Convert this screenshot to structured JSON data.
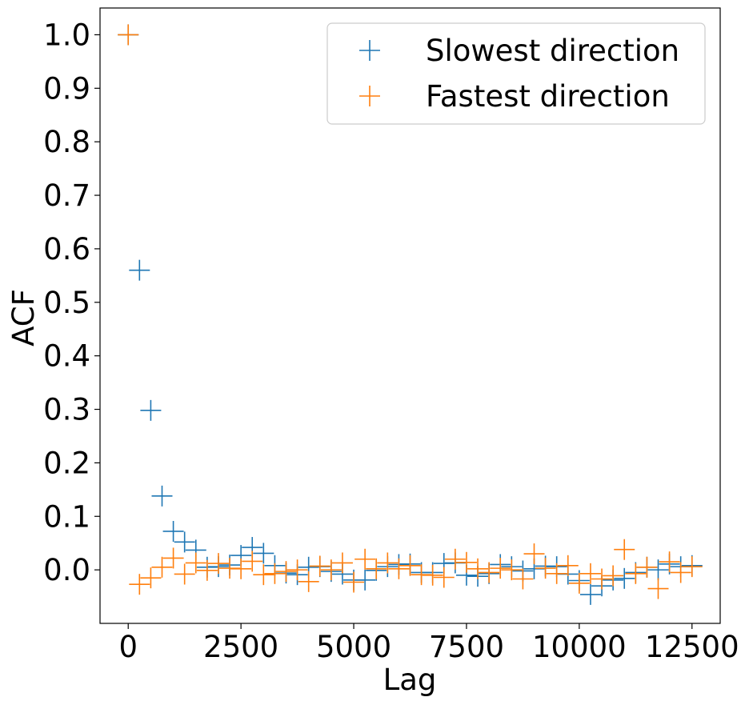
{
  "chart_data": {
    "type": "scatter",
    "marker": "plus",
    "xlabel": "Lag",
    "ylabel": "ACF",
    "xlim": [
      -625,
      13125
    ],
    "ylim": [
      -0.1,
      1.05
    ],
    "x_ticks": [
      0,
      2500,
      5000,
      7500,
      10000,
      12500
    ],
    "y_ticks": [
      0.0,
      0.1,
      0.2,
      0.3,
      0.4,
      0.5,
      0.6,
      0.7,
      0.8,
      0.9,
      1.0
    ],
    "x_tick_labels": [
      "0",
      "2500",
      "5000",
      "7500",
      "10000",
      "12500"
    ],
    "y_tick_labels": [
      "0.0",
      "0.1",
      "0.2",
      "0.3",
      "0.4",
      "0.5",
      "0.6",
      "0.7",
      "0.8",
      "0.9",
      "1.0"
    ],
    "legend_position": "top-right",
    "grid": false,
    "x": [
      0,
      250,
      500,
      750,
      1000,
      1250,
      1500,
      1750,
      2000,
      2250,
      2500,
      2750,
      3000,
      3250,
      3500,
      3750,
      4000,
      4250,
      4500,
      4750,
      5000,
      5250,
      5500,
      5750,
      6000,
      6250,
      6500,
      6750,
      7000,
      7250,
      7500,
      7750,
      8000,
      8250,
      8500,
      8750,
      9000,
      9250,
      9500,
      9750,
      10000,
      10250,
      10500,
      10750,
      11000,
      11250,
      11500,
      11750,
      12000,
      12250,
      12500
    ],
    "series": [
      {
        "name": "Slowest direction",
        "color": "#1f77b4",
        "values": [
          1.0,
          0.56,
          0.298,
          0.138,
          0.072,
          0.052,
          0.037,
          0.005,
          0.006,
          0.009,
          0.027,
          0.042,
          0.031,
          0.008,
          -0.006,
          -0.009,
          0.005,
          0.006,
          -0.003,
          -0.008,
          -0.019,
          -0.019,
          -0.001,
          0.006,
          0.01,
          0.011,
          -0.005,
          -0.005,
          0.012,
          0.013,
          -0.01,
          -0.012,
          -0.007,
          0.01,
          0.006,
          -0.002,
          0.002,
          0.007,
          0.006,
          -0.008,
          -0.02,
          -0.046,
          -0.03,
          -0.019,
          -0.016,
          -0.005,
          0.005,
          0.0,
          0.011,
          0.006,
          0.008
        ]
      },
      {
        "name": "Fastest direction",
        "color": "#ff7f0e",
        "values": [
          1.0,
          -0.027,
          -0.015,
          0.005,
          0.022,
          -0.008,
          0.013,
          -0.001,
          0.012,
          0.003,
          0.002,
          0.016,
          -0.009,
          -0.007,
          -0.003,
          0.0,
          -0.022,
          0.007,
          0.0,
          0.013,
          -0.023,
          0.02,
          0.002,
          0.013,
          0.002,
          0.008,
          -0.009,
          -0.01,
          -0.014,
          0.02,
          0.014,
          0.002,
          -0.005,
          0.003,
          0.0,
          -0.017,
          0.03,
          0.003,
          -0.007,
          0.008,
          -0.025,
          -0.007,
          -0.017,
          -0.011,
          0.038,
          -0.007,
          0.005,
          -0.035,
          0.015,
          -0.005,
          0.006
        ]
      }
    ]
  }
}
